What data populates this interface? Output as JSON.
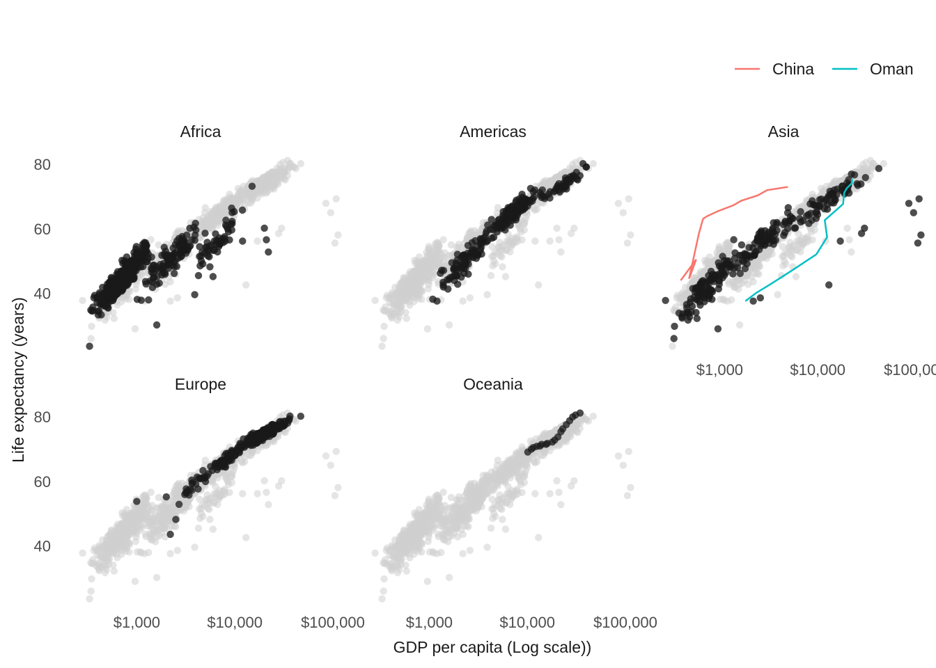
{
  "chart_data": {
    "type": "scatter",
    "title": "",
    "xlabel": "GDP per capita (Log scale))",
    "ylabel": "Life expectancy (years)",
    "x_scale": "log10",
    "xlim": [
      200,
      130000
    ],
    "ylim": [
      22,
      85
    ],
    "x_ticks": [
      1000,
      10000,
      100000
    ],
    "x_tick_labels": [
      "$1,000",
      "$10,000",
      "$100,000"
    ],
    "y_ticks": [
      40,
      60,
      80
    ],
    "y_tick_labels": [
      "40",
      "60",
      "80"
    ],
    "grid": false,
    "background_point_color": "#d0d0d0",
    "highlight_point_color": "#1a1a1a",
    "legend": {
      "position": "top-right",
      "entries": [
        {
          "name": "China",
          "color": "#f8766d"
        },
        {
          "name": "Oman",
          "color": "#00bfc4"
        }
      ]
    },
    "facets": [
      {
        "name": "Africa",
        "clusters": [
          {
            "x": [
              300,
              1600
            ],
            "y": [
              32,
              60
            ],
            "n": 360
          },
          {
            "x": [
              900,
              6000
            ],
            "y": [
              38,
              68
            ],
            "n": 110
          },
          {
            "x": [
              3000,
              15000
            ],
            "y": [
              42,
              74
            ],
            "n": 50
          }
        ],
        "points": [
          [
            330,
            23.6
          ],
          [
            1600,
            30.2
          ],
          [
            3900,
            39.6
          ],
          [
            12000,
            56.2
          ],
          [
            21000,
            56.6
          ],
          [
            22000,
            52.8
          ],
          [
            20000,
            60.2
          ],
          [
            15000,
            73.2
          ],
          [
            8000,
            56.2
          ],
          [
            6000,
            45.2
          ]
        ]
      },
      {
        "name": "Americas",
        "clusters": [
          {
            "x": [
              1000,
              5000
            ],
            "y": [
              38,
              64
            ],
            "n": 80
          },
          {
            "x": [
              3000,
              15000
            ],
            "y": [
              55,
              76
            ],
            "n": 120
          },
          {
            "x": [
              12000,
              42000
            ],
            "y": [
              68,
              80
            ],
            "n": 40
          }
        ],
        "points": [
          [
            1200,
            37.6
          ],
          [
            1300,
            46.2
          ],
          [
            1400,
            47.1
          ],
          [
            40000,
            79.2
          ],
          [
            37000,
            80.2
          ]
        ]
      },
      {
        "name": "Asia",
        "clusters": [
          {
            "x": [
              300,
              2000
            ],
            "y": [
              28,
              60
            ],
            "n": 120
          },
          {
            "x": [
              1000,
              8000
            ],
            "y": [
              45,
              70
            ],
            "n": 90
          },
          {
            "x": [
              5000,
              40000
            ],
            "y": [
              60,
              82
            ],
            "n": 60
          }
        ],
        "points": [
          [
            108000,
            69.3
          ],
          [
            113000,
            58.1
          ],
          [
            105000,
            55.6
          ],
          [
            95000,
            65.0
          ],
          [
            85000,
            67.9
          ],
          [
            30000,
            60.2
          ],
          [
            28000,
            58.6
          ],
          [
            17000,
            56.2
          ],
          [
            13000,
            42.6
          ],
          [
            2200,
            37.6
          ],
          [
            2600,
            38.6
          ],
          [
            960,
            29.0
          ],
          [
            280,
            37.8
          ],
          [
            42000,
            78.7
          ]
        ]
      },
      {
        "name": "Europe",
        "clusters": [
          {
            "x": [
              5000,
              15000
            ],
            "y": [
              62,
              74
            ],
            "n": 60
          },
          {
            "x": [
              10000,
              40000
            ],
            "y": [
              70,
              81
            ],
            "n": 190
          },
          {
            "x": [
              2000,
              8000
            ],
            "y": [
              50,
              70
            ],
            "n": 25
          }
        ],
        "points": [
          [
            1000,
            53.8
          ],
          [
            2200,
            43.6
          ],
          [
            2500,
            48.2
          ],
          [
            2700,
            52.9
          ],
          [
            2000,
            55.2
          ],
          [
            47000,
            80.2
          ]
        ]
      },
      {
        "name": "Oceania",
        "clusters": [],
        "points": [
          [
            10100,
            69.1
          ],
          [
            11000,
            70.0
          ],
          [
            12500,
            70.9
          ],
          [
            14000,
            71.5
          ],
          [
            16000,
            71.8
          ],
          [
            18000,
            72.2
          ],
          [
            19000,
            72.8
          ],
          [
            20500,
            73.8
          ],
          [
            22000,
            75.4
          ],
          [
            23000,
            76.3
          ],
          [
            25000,
            77.6
          ],
          [
            27000,
            78.8
          ],
          [
            29000,
            80.0
          ],
          [
            31000,
            80.6
          ],
          [
            34500,
            81.2
          ],
          [
            11500,
            70.5
          ],
          [
            13500,
            71.0
          ],
          [
            15500,
            71.5
          ]
        ]
      }
    ],
    "series": [
      {
        "name": "China",
        "facet": "Asia",
        "color": "#f8766d",
        "x": [
          400,
          575,
          487,
          612,
          676,
          741,
          962,
          1378,
          1656,
          2452,
          3036,
          4959
        ],
        "y": [
          44.0,
          50.5,
          44.5,
          58.4,
          63.1,
          63.9,
          65.5,
          67.3,
          68.7,
          70.4,
          72.0,
          73.0
        ]
      },
      {
        "name": "Oman",
        "facet": "Asia",
        "color": "#00bfc4",
        "x": [
          1828,
          2348,
          3449,
          5406,
          9678,
          12451,
          11804,
          18134,
          18616,
          19702,
          22316,
          22316
        ],
        "y": [
          37.6,
          40.1,
          43.2,
          47.0,
          52.1,
          57.4,
          62.7,
          67.7,
          71.2,
          72.5,
          74.2,
          75.6
        ]
      }
    ]
  }
}
